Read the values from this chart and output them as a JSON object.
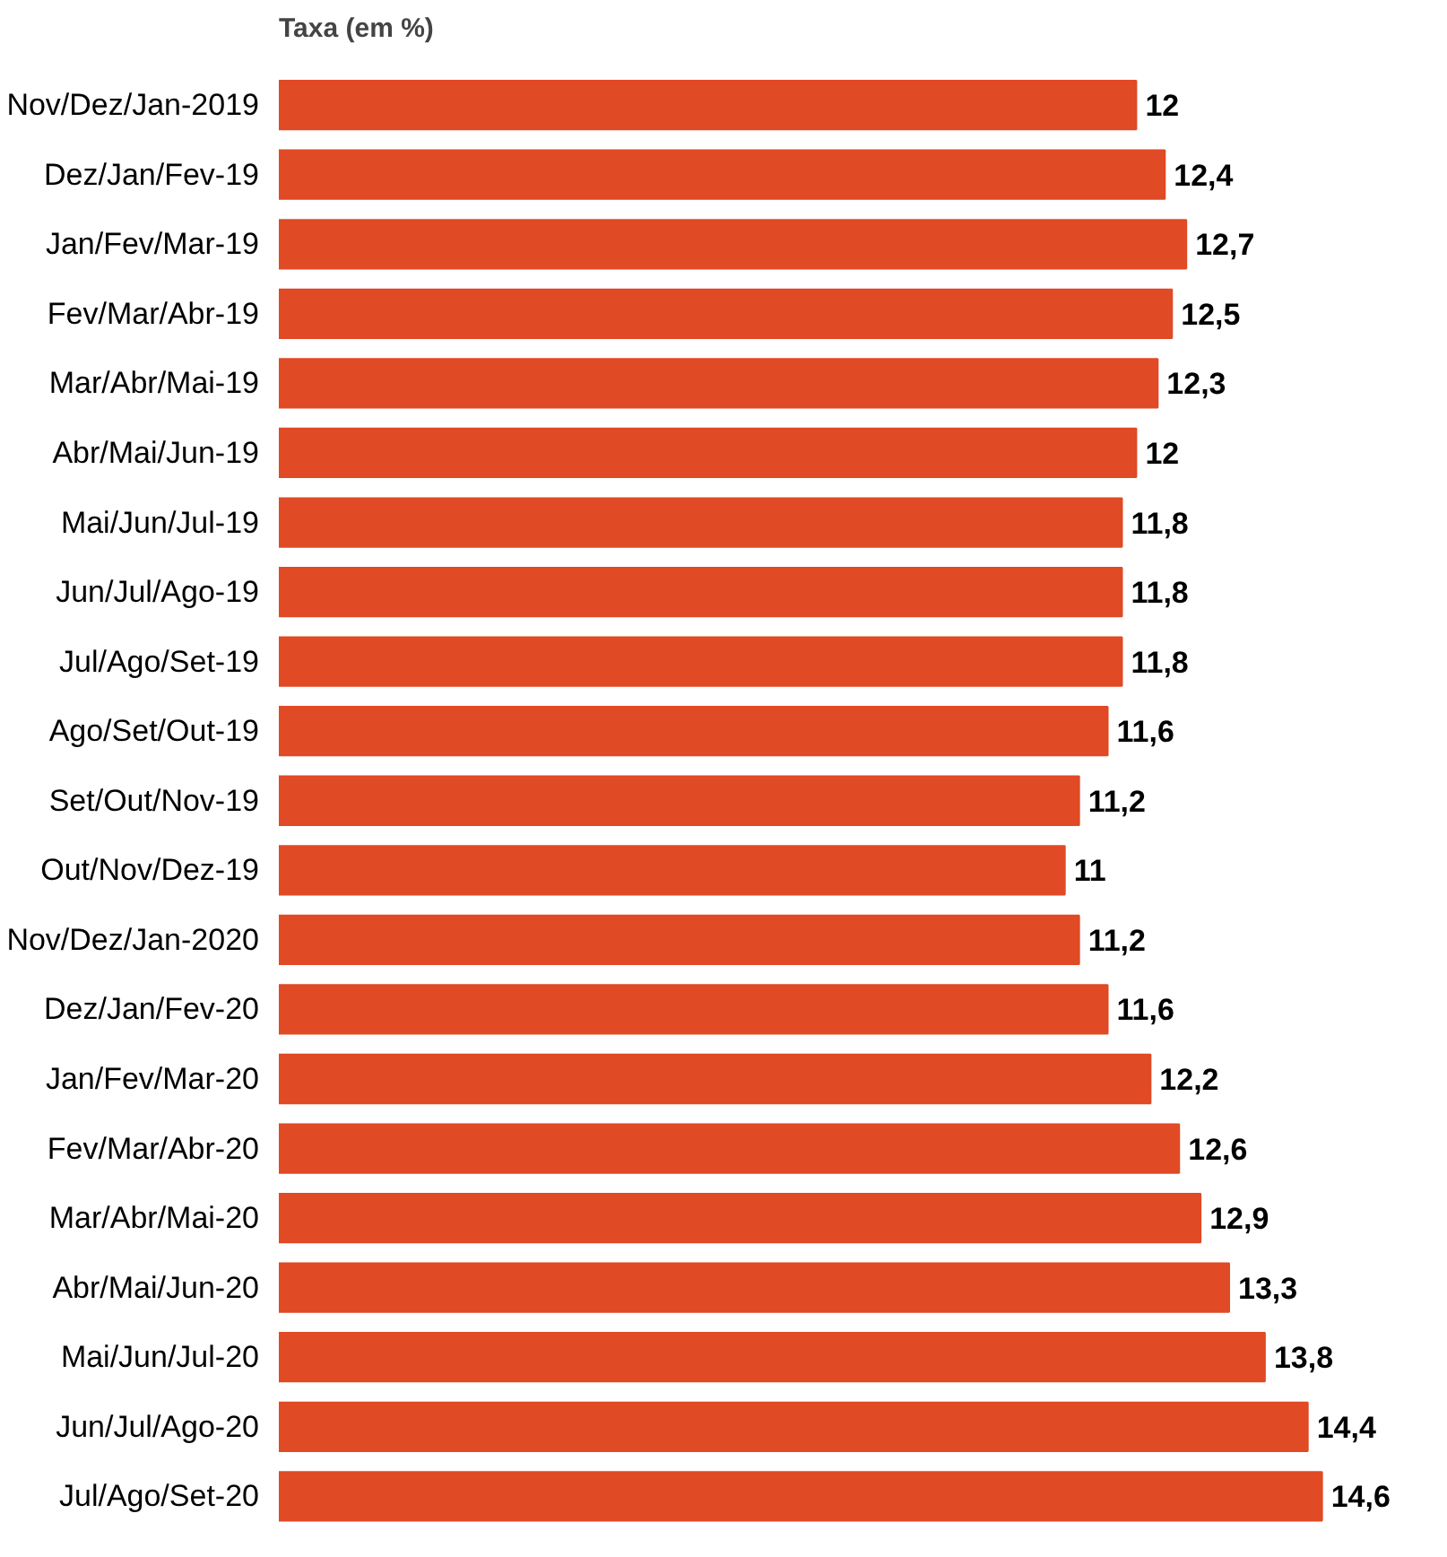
{
  "chart_data": {
    "type": "bar",
    "orientation": "horizontal",
    "title": "Taxa (em %)",
    "categories": [
      "Nov/Dez/Jan-2019",
      "Dez/Jan/Fev-19",
      "Jan/Fev/Mar-19",
      "Fev/Mar/Abr-19",
      "Mar/Abr/Mai-19",
      "Abr/Mai/Jun-19",
      "Mai/Jun/Jul-19",
      "Jun/Jul/Ago-19",
      "Jul/Ago/Set-19",
      "Ago/Set/Out-19",
      "Set/Out/Nov-19",
      "Out/Nov/Dez-19",
      "Nov/Dez/Jan-2020",
      "Dez/Jan/Fev-20",
      "Jan/Fev/Mar-20",
      "Fev/Mar/Abr-20",
      "Mar/Abr/Mai-20",
      "Abr/Mai/Jun-20",
      "Mai/Jun/Jul-20",
      "Jun/Jul/Ago-20",
      "Jul/Ago/Set-20"
    ],
    "values": [
      12,
      12.4,
      12.7,
      12.5,
      12.3,
      12,
      11.8,
      11.8,
      11.8,
      11.6,
      11.2,
      11,
      11.2,
      11.6,
      12.2,
      12.6,
      12.9,
      13.3,
      13.8,
      14.4,
      14.6
    ],
    "value_labels": [
      "12",
      "12,4",
      "12,7",
      "12,5",
      "12,3",
      "12",
      "11,8",
      "11,8",
      "11,8",
      "11,6",
      "11,2",
      "11",
      "11,2",
      "11,6",
      "12,2",
      "12,6",
      "12,9",
      "13,3",
      "13,8",
      "14,4",
      "14,6"
    ],
    "color": "#e04a25",
    "grid": false
  }
}
